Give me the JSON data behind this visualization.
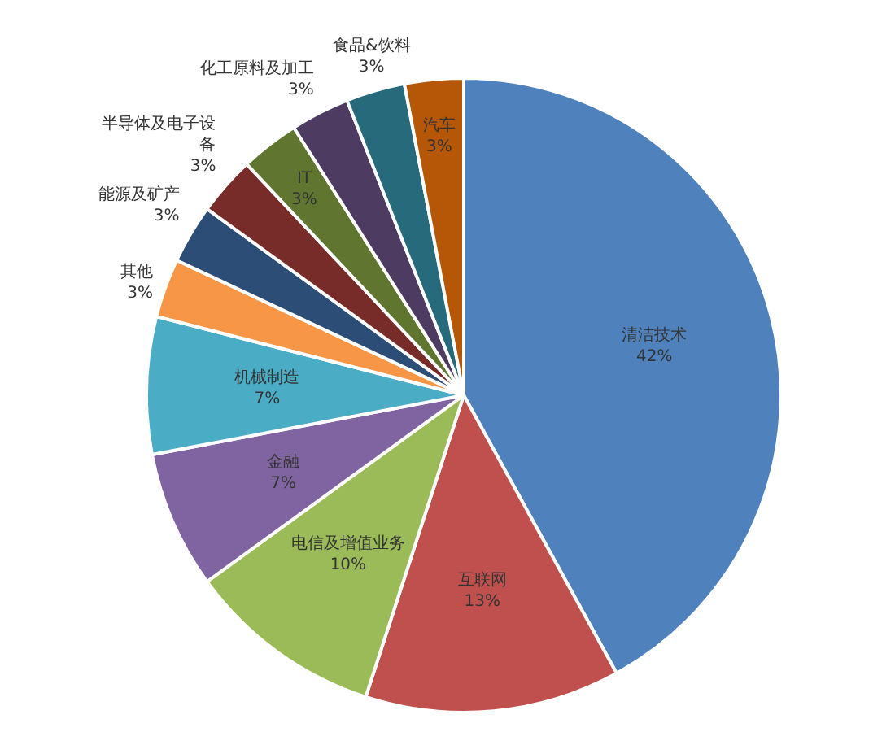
{
  "chart_data": {
    "type": "pie",
    "categories": [
      "清洁技术",
      "互联网",
      "电信及增值业务",
      "金融",
      "机械制造",
      "其他",
      "能源及矿产",
      "半导体及电子设备",
      "IT",
      "化工原料及加工",
      "食品&饮料",
      "汽车"
    ],
    "values": [
      42,
      13,
      10,
      7,
      7,
      3,
      3,
      3,
      3,
      3,
      3,
      3
    ],
    "value_labels": [
      "42%",
      "13%",
      "10%",
      "7%",
      "7%",
      "3%",
      "3%",
      "3%",
      "3%",
      "3%",
      "3%",
      "3%"
    ],
    "colors": [
      "#4f81bd",
      "#c0504d",
      "#9bbb59",
      "#8064a2",
      "#4bacc6",
      "#f79646",
      "#2c4d75",
      "#772c2a",
      "#5f7530",
      "#4d3b62",
      "#276a7c",
      "#b65708"
    ],
    "legend": false
  }
}
